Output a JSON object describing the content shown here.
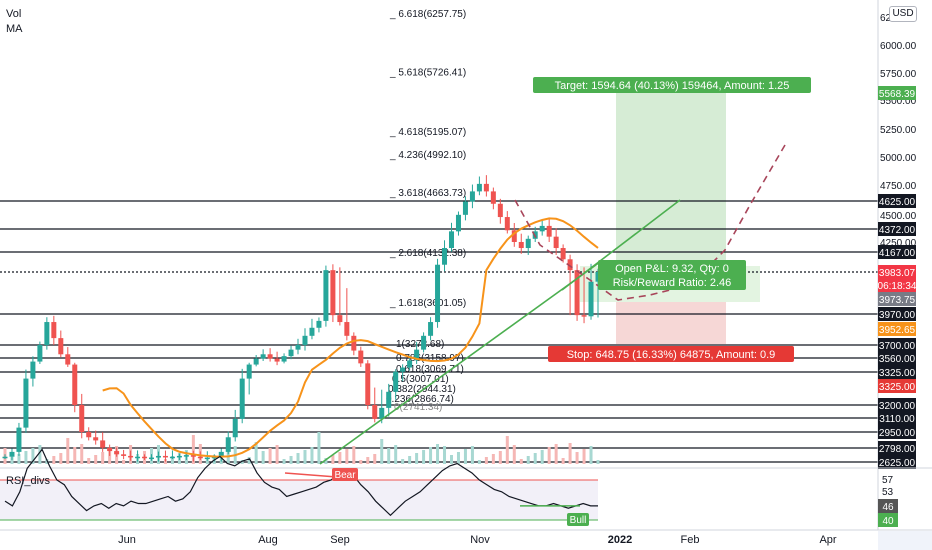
{
  "legend": {
    "vol": "Vol",
    "ma": "MA",
    "rsi": "RSI_divs"
  },
  "currency": "USD",
  "colors": {
    "up": "#26a69a",
    "down": "#ef5350",
    "ma": "#f7931a",
    "trend": "#4caf50",
    "target_fill": "#d6ecd5",
    "stop_fill": "#f6d7d6",
    "target_label": "#4caf50",
    "stop_label": "#e53935",
    "dark": "#131722"
  },
  "chart_data": [
    {
      "type": "candlestick",
      "x_ticks": [
        "Jun",
        "Aug",
        "Sep",
        "Nov",
        "2022",
        "Feb",
        "Apr"
      ],
      "y_ticks": [
        "6250.00",
        "6000.00",
        "5750.00",
        "5500.00",
        "5250.00",
        "5000.00",
        "4750.00",
        "4500.00",
        "4250.00",
        "3700.00",
        "3560.00",
        "3325.00",
        "3200.00",
        "3110.00",
        "2950.00",
        "2798.00",
        "2625.00"
      ],
      "horizontal_levels": [
        4625,
        4372,
        4167,
        3983.07,
        3970,
        3700,
        3560,
        3325,
        3200,
        3110,
        2950,
        2798,
        2625
      ],
      "price_labels": [
        {
          "label": "5568.39",
          "kind": "target"
        },
        {
          "label": "4625.00",
          "kind": "level"
        },
        {
          "label": "4372.00",
          "kind": "level"
        },
        {
          "label": "4167.00",
          "kind": "level"
        },
        {
          "label": "3983.07",
          "kind": "last"
        },
        {
          "label": "06:18:34",
          "kind": "last-time"
        },
        {
          "label": "3973.75",
          "kind": "gray"
        },
        {
          "label": "3970.00",
          "kind": "level"
        },
        {
          "label": "3952.65",
          "kind": "stop"
        },
        {
          "label": "3700.00",
          "kind": "level"
        },
        {
          "label": "3560.00",
          "kind": "level"
        },
        {
          "label": "3325.00",
          "kind": "level"
        },
        {
          "label": "3325.00",
          "kind": "red"
        },
        {
          "label": "3200.00",
          "kind": "level"
        },
        {
          "label": "3110.00",
          "kind": "level"
        },
        {
          "label": "2950.00",
          "kind": "level"
        },
        {
          "label": "2798.00",
          "kind": "level"
        },
        {
          "label": "2625.00",
          "kind": "level"
        }
      ],
      "fib_upper": [
        "6.618(6257.75)",
        "5.618(5726.41)",
        "4.618(5195.07)",
        "4.236(4992.10)",
        "3.618(4663.73)",
        "2.618(4132.38)",
        "1.618(3601.05)"
      ],
      "fib_lower": [
        "1(3272.68)",
        "0.786(3158.97)",
        "0.618(3069.71)",
        "0.5(3007.01)",
        "0.382(2944.31)",
        "0.236(2866.74)",
        "0(2741.34)"
      ],
      "position": {
        "target_text": "Target: 1594.64 (40.13%) 159464, Amount: 1.25",
        "stop_text": "Stop: 648.75 (16.33%) 64875, Amount: 0.9",
        "pnl_text": "Open P&L: 9.32, Qty: 0",
        "rr_text": "Risk/Reward Ratio: 2.46"
      },
      "price_path": [
        2690,
        2750,
        3000,
        3300,
        3500,
        3700,
        3900,
        3760,
        3600,
        3450,
        3200,
        2950,
        2900,
        2870,
        2800,
        2760,
        2720,
        2700,
        2690,
        2690,
        2680,
        2680,
        2700,
        2690,
        2690,
        2700,
        2710,
        2690,
        2680,
        2680,
        2690,
        2750,
        2900,
        3100,
        3300,
        3450,
        3550,
        3600,
        3550,
        3500,
        3580,
        3650,
        3700,
        3780,
        3850,
        3910,
        4000,
        3960,
        3900,
        3780,
        3640,
        3470,
        3200,
        3100,
        3180,
        3250,
        3330,
        3400,
        3520,
        3650,
        3780,
        3900,
        4050,
        4200,
        4350,
        4500,
        4620,
        4700,
        4760,
        4700,
        4600,
        4480,
        4360,
        4250,
        4200,
        4280,
        4350,
        4400,
        4300,
        4200,
        4100,
        4000,
        3960,
        3950,
        3980,
        3983
      ],
      "ma_note": "moving average"
    },
    {
      "type": "line",
      "name": "RSI_divs",
      "y_ticks": [
        "57",
        "53",
        "46",
        "40"
      ],
      "annotations": [
        "Bear",
        "Bull"
      ],
      "values": [
        48,
        46,
        52,
        62,
        66,
        70,
        63,
        57,
        55,
        50,
        47,
        44,
        46,
        47,
        45,
        47,
        46,
        48,
        47,
        47,
        48,
        49,
        50,
        48,
        49,
        52,
        58,
        62,
        65,
        67,
        64,
        63,
        65,
        66,
        60,
        56,
        54,
        53,
        50,
        51,
        52,
        53,
        54,
        56,
        57,
        60,
        61,
        59,
        55,
        52,
        48,
        45,
        42,
        45,
        48,
        50,
        52,
        55,
        58,
        61,
        63,
        64,
        62,
        60,
        57,
        55,
        53,
        52,
        50,
        49,
        48,
        47,
        46,
        46,
        47,
        46,
        45,
        46,
        47,
        46,
        46
      ]
    }
  ]
}
